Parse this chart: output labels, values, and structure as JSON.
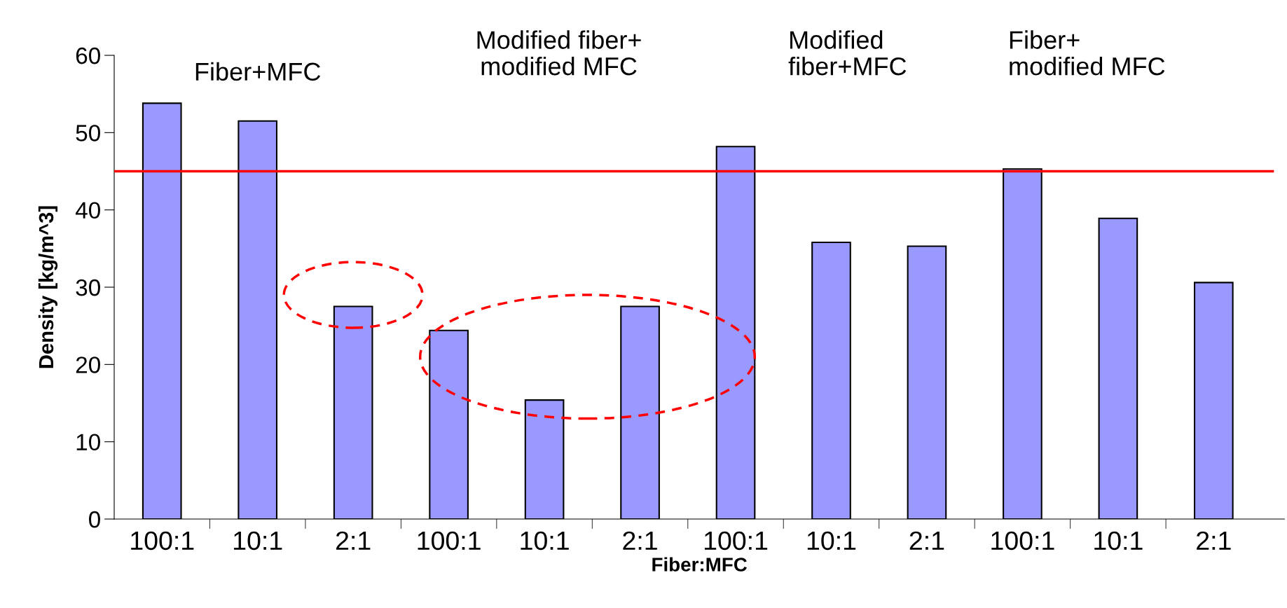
{
  "chart_data": {
    "type": "bar",
    "xlabel": "Fiber:MFC",
    "ylabel": "Density [kg/m^3]",
    "categories": [
      "100:1",
      "10:1",
      "2:1",
      "100:1",
      "10:1",
      "2:1",
      "100:1",
      "10:1",
      "2:1",
      "100:1",
      "10:1",
      "2:1"
    ],
    "values": [
      53.8,
      51.5,
      27.5,
      24.4,
      15.4,
      27.5,
      48.2,
      35.8,
      35.3,
      45.3,
      38.9,
      30.6
    ],
    "color": "#9999ff",
    "ylim": [
      0,
      60
    ],
    "yticks": [
      0,
      10,
      20,
      30,
      40,
      50,
      60
    ],
    "ref_lines": [
      {
        "axis": "y",
        "value": 45,
        "color": "#ff0000"
      }
    ],
    "annotations": [
      "Fiber+MFC",
      "Modified fiber+\nmodified MFC",
      "Modified\nfiber+MFC",
      "Fiber+\nmodified MFC"
    ],
    "grid": false
  }
}
